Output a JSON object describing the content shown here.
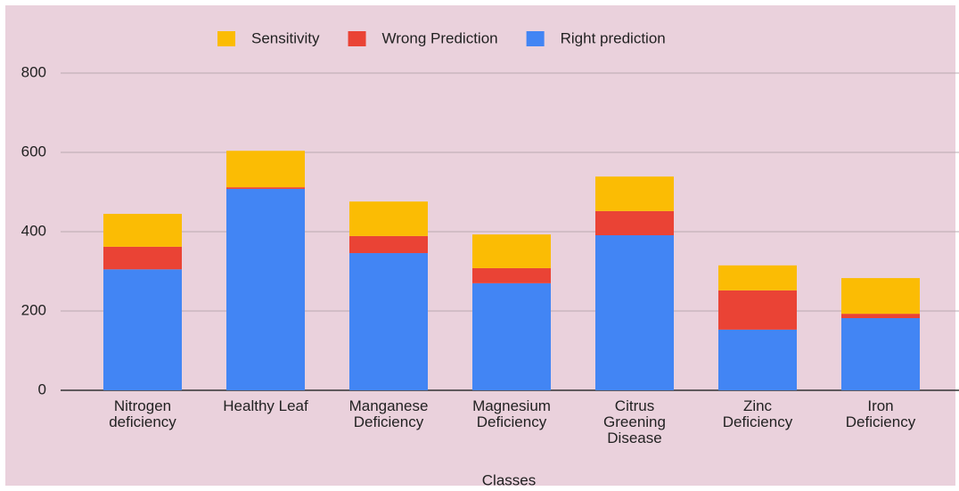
{
  "chart_data": {
    "type": "bar",
    "stacked": true,
    "x_label": "Classes",
    "categories": [
      "Nitrogen deficiency",
      "Healthy Leaf",
      "Manganese Deficiency",
      "Magnesium Deficiency",
      "Citrus Greening Disease",
      "Zinc Deficiency",
      "Iron Deficiency"
    ],
    "series": [
      {
        "name": "Sensitivity",
        "color": "#fbbc04",
        "values": [
          83,
          92,
          87,
          85,
          87,
          63,
          90
        ]
      },
      {
        "name": "Wrong Prediction",
        "color": "#ea4335",
        "values": [
          57,
          4,
          43,
          38,
          61,
          99,
          11
        ]
      },
      {
        "name": "Right prediction",
        "color": "#4285f4",
        "values": [
          305,
          508,
          346,
          270,
          391,
          153,
          182
        ]
      }
    ],
    "ylim": [
      0,
      800
    ],
    "yticks": [
      0,
      200,
      400,
      600,
      800
    ],
    "grid": true,
    "legend": "top"
  }
}
